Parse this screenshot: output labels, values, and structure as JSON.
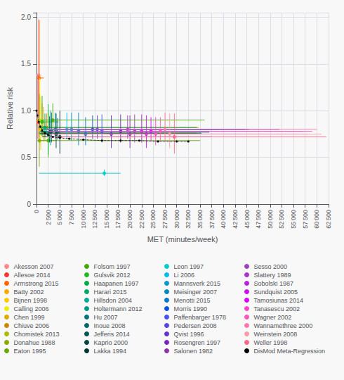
{
  "chart_data": {
    "type": "scatter",
    "xlabel": "MET (minutes/week)",
    "ylabel": "Relative risk",
    "xlim": [
      0,
      62500
    ],
    "ylim": [
      0,
      2.05
    ],
    "xticks": [
      0,
      {
        "value": 2500,
        "label": "2 500"
      },
      {
        "value": 5000,
        "label": "5 000"
      },
      {
        "value": 7500,
        "label": "7 500"
      },
      {
        "value": 10000,
        "label": "10 000"
      },
      {
        "value": 12500,
        "label": "12 500"
      },
      {
        "value": 15000,
        "label": "15 000"
      },
      {
        "value": 17500,
        "label": "17 500"
      },
      {
        "value": 20000,
        "label": "20 000"
      },
      {
        "value": 22500,
        "label": "22 500"
      },
      {
        "value": 25000,
        "label": "25 000"
      },
      {
        "value": 27500,
        "label": "27 500"
      },
      {
        "value": 30000,
        "label": "30 000"
      },
      {
        "value": 32500,
        "label": "32 500"
      },
      {
        "value": 35000,
        "label": "35 000"
      },
      {
        "value": 37500,
        "label": "37 500"
      },
      {
        "value": 40000,
        "label": "40 000"
      },
      {
        "value": 42500,
        "label": "42 500"
      },
      {
        "value": 45000,
        "label": "45 000"
      },
      {
        "value": 47500,
        "label": "47 500"
      },
      {
        "value": 50000,
        "label": "50 000"
      },
      {
        "value": 52500,
        "label": "52 500"
      },
      {
        "value": 55000,
        "label": "55 000"
      },
      {
        "value": 57500,
        "label": "57 500"
      },
      {
        "value": 60000,
        "label": "60 000"
      },
      {
        "value": 62500,
        "label": "62 500"
      }
    ],
    "yticks": [
      0,
      0.5,
      {
        "value": 1.0,
        "label": "1.0"
      },
      1.5,
      {
        "value": 2.0,
        "label": "2.0"
      }
    ],
    "grid": true,
    "legend": "bottom",
    "series": [
      {
        "name": "Akesson 2007",
        "color": "#ff8888",
        "x": [
          400
        ],
        "values": [
          1.38
        ],
        "x_err_minus": [
          300
        ],
        "x_err_plus": [
          600
        ],
        "y_err_minus": [
          0.45
        ],
        "y_err_plus": [
          0.6
        ]
      },
      {
        "name": "Allesoe 2014",
        "color": "#ff3333",
        "x": [
          300
        ],
        "values": [
          0.88
        ],
        "x_err_minus": [
          250
        ],
        "x_err_plus": [
          500
        ],
        "y_err_minus": [
          0.18
        ],
        "y_err_plus": [
          0.5
        ]
      },
      {
        "name": "Armstrong 2015",
        "color": "#ff6600",
        "x": [
          600
        ],
        "values": [
          1.35
        ],
        "x_err_minus": [
          500
        ],
        "x_err_plus": [
          1000
        ],
        "y_err_minus": [
          0.4
        ],
        "y_err_plus": [
          0.62
        ]
      },
      {
        "name": "Batty 2002",
        "color": "#ffaa00",
        "x": [
          1200
        ],
        "values": [
          0.88
        ],
        "x_err_minus": [
          1000
        ],
        "x_err_plus": [
          2500
        ],
        "y_err_minus": [
          0.15
        ],
        "y_err_plus": [
          0.2
        ]
      },
      {
        "name": "Bijnen 1998",
        "color": "#ffcc00",
        "x": [
          900
        ],
        "values": [
          0.8
        ],
        "x_err_minus": [
          700
        ],
        "x_err_plus": [
          2000
        ],
        "y_err_minus": [
          0.22
        ],
        "y_err_plus": [
          0.35
        ]
      },
      {
        "name": "Calling 2006",
        "color": "#eeee00",
        "x": [
          700
        ],
        "values": [
          0.9
        ],
        "x_err_minus": [
          600
        ],
        "x_err_plus": [
          1800
        ],
        "y_err_minus": [
          0.25
        ],
        "y_err_plus": [
          0.45
        ]
      },
      {
        "name": "Chen 1999",
        "color": "#ddaa00",
        "x": [
          1500
        ],
        "values": [
          0.82
        ],
        "x_err_minus": [
          1200
        ],
        "x_err_plus": [
          3000
        ],
        "y_err_minus": [
          0.15
        ],
        "y_err_plus": [
          0.22
        ]
      },
      {
        "name": "Chiuve 2006",
        "color": "#cc8800",
        "x": [
          2200
        ],
        "values": [
          0.82
        ],
        "x_err_minus": [
          1800
        ],
        "x_err_plus": [
          32500
        ],
        "y_err_minus": [
          0.08
        ],
        "y_err_plus": [
          0.15
        ]
      },
      {
        "name": "Chomistek 2013",
        "color": "#aabb00",
        "x": [
          1800
        ],
        "values": [
          0.76
        ],
        "x_err_minus": [
          1500
        ],
        "x_err_plus": [
          32500
        ],
        "y_err_minus": [
          0.08
        ],
        "y_err_plus": [
          0.12
        ]
      },
      {
        "name": "Donahue 1988",
        "color": "#88aa00",
        "x": [
          600
        ],
        "values": [
          0.68
        ],
        "x_err_minus": [
          400
        ],
        "x_err_plus": [
          3500
        ],
        "y_err_minus": [
          0.28
        ],
        "y_err_plus": [
          0.5
        ]
      },
      {
        "name": "Eaton 1995",
        "color": "#66aa00",
        "x": [
          2500
        ],
        "values": [
          0.68
        ],
        "x_err_minus": [
          2000
        ],
        "x_err_plus": [
          32500
        ],
        "y_err_minus": [
          0.18
        ],
        "y_err_plus": [
          0.32
        ]
      },
      {
        "name": "Folsom 1997",
        "color": "#44aa00",
        "x": [
          3500
        ],
        "values": [
          0.9
        ],
        "x_err_minus": [
          2800
        ],
        "x_err_plus": [
          32500
        ],
        "y_err_minus": [
          0.1
        ],
        "y_err_plus": [
          0.18
        ]
      },
      {
        "name": "Gulsvik 2012",
        "color": "#22bb22",
        "x": [
          1200
        ],
        "values": [
          0.88
        ],
        "x_err_minus": [
          900
        ],
        "x_err_plus": [
          3500
        ],
        "y_err_minus": [
          0.15
        ],
        "y_err_plus": [
          0.28
        ]
      },
      {
        "name": "Haapanen 1997",
        "color": "#00aa44",
        "x": [
          2500
        ],
        "values": [
          0.75
        ],
        "x_err_minus": [
          1800
        ],
        "x_err_plus": [
          7500
        ],
        "y_err_minus": [
          0.22
        ],
        "y_err_plus": [
          0.32
        ]
      },
      {
        "name": "Harari 2015",
        "color": "#00aa66",
        "x": [
          1800
        ],
        "values": [
          0.82
        ],
        "x_err_minus": [
          1400
        ],
        "x_err_plus": [
          32500
        ],
        "y_err_minus": [
          0.1
        ],
        "y_err_plus": [
          0.15
        ]
      },
      {
        "name": "Hillsdon 2004",
        "color": "#00aa99",
        "x": [
          3000
        ],
        "values": [
          0.78
        ],
        "x_err_minus": [
          2200
        ],
        "x_err_plus": [
          32500
        ],
        "y_err_minus": [
          0.15
        ],
        "y_err_plus": [
          0.22
        ]
      },
      {
        "name": "Holtermann 2012",
        "color": "#009988",
        "x": [
          4000
        ],
        "values": [
          0.8
        ],
        "x_err_minus": [
          3000
        ],
        "x_err_plus": [
          32500
        ],
        "y_err_minus": [
          0.1
        ],
        "y_err_plus": [
          0.18
        ]
      },
      {
        "name": "Hu 2007",
        "color": "#007777",
        "x": [
          4500
        ],
        "values": [
          0.77
        ],
        "x_err_minus": [
          3500
        ],
        "x_err_plus": [
          32500
        ],
        "y_err_minus": [
          0.08
        ],
        "y_err_plus": [
          0.15
        ]
      },
      {
        "name": "Inoue 2008",
        "color": "#006666",
        "x": [
          3200
        ],
        "values": [
          0.78
        ],
        "x_err_minus": [
          2500
        ],
        "x_err_plus": [
          32500
        ],
        "y_err_minus": [
          0.12
        ],
        "y_err_plus": [
          0.2
        ]
      },
      {
        "name": "Jefferis 2014",
        "color": "#005555",
        "x": [
          2800
        ],
        "values": [
          0.76
        ],
        "x_err_minus": [
          2200
        ],
        "x_err_plus": [
          32500
        ],
        "y_err_minus": [
          0.1
        ],
        "y_err_plus": [
          0.18
        ]
      },
      {
        "name": "Kaprio 2000",
        "color": "#004444",
        "x": [
          4200
        ],
        "values": [
          0.75
        ],
        "x_err_minus": [
          3200
        ],
        "x_err_plus": [
          32500
        ],
        "y_err_minus": [
          0.15
        ],
        "y_err_plus": [
          0.22
        ]
      },
      {
        "name": "Lakka 1994",
        "color": "#003333",
        "x": [
          5000
        ],
        "values": [
          0.72
        ],
        "x_err_minus": [
          3800
        ],
        "x_err_plus": [
          32500
        ],
        "y_err_minus": [
          0.18
        ],
        "y_err_plus": [
          0.28
        ]
      },
      {
        "name": "Leon 1997",
        "color": "#00cccc",
        "x": [
          14500
        ],
        "values": [
          0.33
        ],
        "x_err_minus": [
          14000
        ],
        "x_err_plus": [
          3500
        ],
        "y_err_minus": [
          0.03
        ],
        "y_err_plus": [
          0.04
        ]
      },
      {
        "name": "Li 2006",
        "color": "#00bbee",
        "x": [
          6500
        ],
        "values": [
          0.8
        ],
        "x_err_minus": [
          5500
        ],
        "x_err_plus": [
          32500
        ],
        "y_err_minus": [
          0.1
        ],
        "y_err_plus": [
          0.18
        ]
      },
      {
        "name": "Mannsverk 2015",
        "color": "#0099cc",
        "x": [
          7500
        ],
        "values": [
          0.8
        ],
        "x_err_minus": [
          6000
        ],
        "x_err_plus": [
          32500
        ],
        "y_err_minus": [
          0.12
        ],
        "y_err_plus": [
          0.18
        ]
      },
      {
        "name": "Meisinger 2007",
        "color": "#0088bb",
        "x": [
          9000
        ],
        "values": [
          0.78
        ],
        "x_err_minus": [
          7000
        ],
        "x_err_plus": [
          32500
        ],
        "y_err_minus": [
          0.15
        ],
        "y_err_plus": [
          0.2
        ]
      },
      {
        "name": "Menotti 2015",
        "color": "#0077cc",
        "x": [
          10500
        ],
        "values": [
          0.75
        ],
        "x_err_minus": [
          8500
        ],
        "x_err_plus": [
          32500
        ],
        "y_err_minus": [
          0.12
        ],
        "y_err_plus": [
          0.18
        ]
      },
      {
        "name": "Morris 1990",
        "color": "#0055dd",
        "x": [
          12000
        ],
        "values": [
          0.8
        ],
        "x_err_minus": [
          9500
        ],
        "x_err_plus": [
          32500
        ],
        "y_err_minus": [
          0.1
        ],
        "y_err_plus": [
          0.15
        ]
      },
      {
        "name": "Paffenbarger 1978",
        "color": "#4455ee",
        "x": [
          14000
        ],
        "values": [
          0.78
        ],
        "x_err_minus": [
          11000
        ],
        "x_err_plus": [
          32500
        ],
        "y_err_minus": [
          0.12
        ],
        "y_err_plus": [
          0.18
        ]
      },
      {
        "name": "Pedersen 2008",
        "color": "#5544dd",
        "x": [
          13000
        ],
        "values": [
          0.8
        ],
        "x_err_minus": [
          10500
        ],
        "x_err_plus": [
          32500
        ],
        "y_err_minus": [
          0.1
        ],
        "y_err_plus": [
          0.15
        ]
      },
      {
        "name": "Qvist 1996",
        "color": "#6633cc",
        "x": [
          16000
        ],
        "values": [
          0.75
        ],
        "x_err_minus": [
          13000
        ],
        "x_err_plus": [
          32500
        ],
        "y_err_minus": [
          0.15
        ],
        "y_err_plus": [
          0.2
        ]
      },
      {
        "name": "Rosengren 1997",
        "color": "#7722bb",
        "x": [
          18000
        ],
        "values": [
          0.78
        ],
        "x_err_minus": [
          15000
        ],
        "x_err_plus": [
          32500
        ],
        "y_err_minus": [
          0.12
        ],
        "y_err_plus": [
          0.18
        ]
      },
      {
        "name": "Salonen 1982",
        "color": "#8833aa",
        "x": [
          20000
        ],
        "values": [
          0.75
        ],
        "x_err_minus": [
          17000
        ],
        "x_err_plus": [
          32500
        ],
        "y_err_minus": [
          0.15
        ],
        "y_err_plus": [
          0.2
        ]
      },
      {
        "name": "Sesso 2000",
        "color": "#9944bb",
        "x": [
          21000
        ],
        "values": [
          0.78
        ],
        "x_err_minus": [
          18500
        ],
        "x_err_plus": [
          32500
        ],
        "y_err_minus": [
          0.12
        ],
        "y_err_plus": [
          0.18
        ]
      },
      {
        "name": "Slattery 1989",
        "color": "#aa33cc",
        "x": [
          19500
        ],
        "values": [
          0.8
        ],
        "x_err_minus": [
          17000
        ],
        "x_err_plus": [
          32500
        ],
        "y_err_minus": [
          0.1
        ],
        "y_err_plus": [
          0.15
        ]
      },
      {
        "name": "Sobolski 1987",
        "color": "#bb22dd",
        "x": [
          22500
        ],
        "values": [
          0.78
        ],
        "x_err_minus": [
          20000
        ],
        "x_err_plus": [
          32500
        ],
        "y_err_minus": [
          0.12
        ],
        "y_err_plus": [
          0.18
        ]
      },
      {
        "name": "Sundquist 2005",
        "color": "#cc11ee",
        "x": [
          23500
        ],
        "values": [
          0.75
        ],
        "x_err_minus": [
          21000
        ],
        "x_err_plus": [
          32500
        ],
        "y_err_minus": [
          0.15
        ],
        "y_err_plus": [
          0.2
        ]
      },
      {
        "name": "Tamosiunas 2014",
        "color": "#dd00ff",
        "x": [
          24500
        ],
        "values": [
          0.78
        ],
        "x_err_minus": [
          22000
        ],
        "x_err_plus": [
          32500
        ],
        "y_err_minus": [
          0.1
        ],
        "y_err_plus": [
          0.15
        ]
      },
      {
        "name": "Tanasescu 2002",
        "color": "#ff44cc",
        "x": [
          25500
        ],
        "values": [
          0.75
        ],
        "x_err_minus": [
          23000
        ],
        "x_err_plus": [
          32500
        ],
        "y_err_minus": [
          0.12
        ],
        "y_err_plus": [
          0.18
        ]
      },
      {
        "name": "Wagner 2002",
        "color": "#ff55bb",
        "x": [
          26500
        ],
        "values": [
          0.78
        ],
        "x_err_minus": [
          24000
        ],
        "x_err_plus": [
          32500
        ],
        "y_err_minus": [
          0.1
        ],
        "y_err_plus": [
          0.15
        ]
      },
      {
        "name": "Wannamethree 2000",
        "color": "#ff77aa",
        "x": [
          27500
        ],
        "values": [
          0.8
        ],
        "x_err_minus": [
          25000
        ],
        "x_err_plus": [
          32500
        ],
        "y_err_minus": [
          0.12
        ],
        "y_err_plus": [
          0.18
        ]
      },
      {
        "name": "Weinstein 2008",
        "color": "#ff99aa",
        "x": [
          28500
        ],
        "values": [
          0.75
        ],
        "x_err_minus": [
          26000
        ],
        "x_err_plus": [
          32500
        ],
        "y_err_minus": [
          0.15
        ],
        "y_err_plus": [
          0.22
        ]
      },
      {
        "name": "Weller 1998",
        "color": "#ff6688",
        "x": [
          29500
        ],
        "values": [
          0.72
        ],
        "x_err_minus": [
          27000
        ],
        "x_err_plus": [
          32500
        ],
        "y_err_minus": [
          0.18
        ],
        "y_err_plus": [
          0.25
        ]
      },
      {
        "name": "DisMod Meta-Regression",
        "type": "line",
        "color": "#000000",
        "line_style": "dotted",
        "marker": "circle",
        "x": [
          0,
          200,
          500,
          800,
          1200,
          1800,
          2500,
          3500,
          5000,
          7000,
          10000,
          14000,
          18000,
          22000,
          26000,
          30000,
          32500
        ],
        "values": [
          1.0,
          0.95,
          0.88,
          0.83,
          0.79,
          0.76,
          0.74,
          0.72,
          0.71,
          0.7,
          0.69,
          0.68,
          0.68,
          0.68,
          0.67,
          0.67,
          0.67
        ]
      }
    ]
  }
}
